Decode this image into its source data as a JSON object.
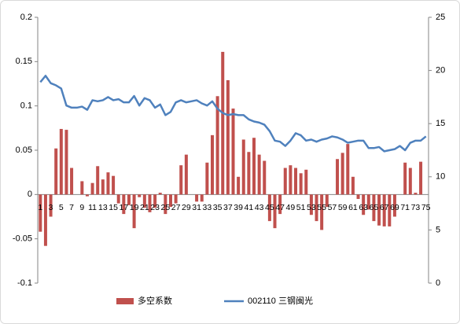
{
  "chart_data": {
    "type": "bar_line",
    "categories": [
      "1",
      null,
      "3",
      null,
      "5",
      null,
      "7",
      null,
      "9",
      null,
      "11",
      null,
      "13",
      null,
      "15",
      null,
      "17",
      null,
      "19",
      null,
      "21",
      null,
      "23",
      null,
      "25",
      null,
      "27",
      null,
      "29",
      null,
      "31",
      null,
      "33",
      null,
      "35",
      null,
      "37",
      null,
      "39",
      null,
      "41",
      null,
      "43",
      null,
      "45",
      null,
      "47",
      null,
      "49",
      null,
      "51",
      null,
      "53",
      null,
      "55",
      null,
      "57",
      null,
      "59",
      null,
      "61",
      null,
      "63",
      null,
      "65",
      null,
      "67",
      null,
      "69",
      null,
      "71",
      null,
      "73",
      null,
      "75"
    ],
    "series": [
      {
        "name": "多空系数",
        "type": "bar",
        "color": "#c0504d",
        "axis": "y",
        "values": [
          -0.042,
          -0.058,
          -0.025,
          0.052,
          0.074,
          0.073,
          0.03,
          0,
          0.015,
          -0.002,
          0.013,
          0.032,
          0.017,
          0.025,
          0.021,
          -0.01,
          -0.022,
          -0.012,
          -0.038,
          -0.003,
          -0.015,
          -0.02,
          -0.015,
          0.002,
          -0.022,
          -0.014,
          -0.01,
          0.033,
          0.045,
          0,
          -0.008,
          -0.008,
          0.036,
          0.067,
          0.111,
          0.161,
          0.129,
          0.097,
          0.02,
          0.062,
          0.048,
          0.064,
          0.045,
          0.038,
          -0.03,
          -0.038,
          -0.022,
          0.03,
          0.033,
          0.03,
          0.024,
          0.028,
          -0.023,
          -0.03,
          -0.04,
          -0.014,
          0,
          0.04,
          0.047,
          0.057,
          0.02,
          -0.005,
          -0.023,
          -0.017,
          -0.03,
          -0.035,
          -0.036,
          -0.036,
          -0.025,
          0,
          0.036,
          0.03,
          0.002,
          0.037,
          0
        ]
      },
      {
        "name": "002110 三钢闽光",
        "type": "line",
        "color": "#4f81bd",
        "axis": "y2",
        "values": [
          18.9,
          19.5,
          18.8,
          18.6,
          18.3,
          16.7,
          16.5,
          16.5,
          16.6,
          16.3,
          17.2,
          17.1,
          17.2,
          17.5,
          17.2,
          17.3,
          17.0,
          17.0,
          17.6,
          16.7,
          17.4,
          17.2,
          16.5,
          16.8,
          15.8,
          16.1,
          17.0,
          17.2,
          17.0,
          17.1,
          17.2,
          16.9,
          16.7,
          17.1,
          16.4,
          16.0,
          15.8,
          15.9,
          15.8,
          15.8,
          15.4,
          15.2,
          15.1,
          14.9,
          14.3,
          13.4,
          13.3,
          12.9,
          13.4,
          14.1,
          13.9,
          13.4,
          13.5,
          13.3,
          13.5,
          13.6,
          13.8,
          13.7,
          13.5,
          13.2,
          13.3,
          13.4,
          13.4,
          12.7,
          12.7,
          12.8,
          12.4,
          12.5,
          12.6,
          12.9,
          12.5,
          13.2,
          13.4,
          13.4,
          13.8
        ]
      }
    ],
    "ylim": [
      -0.1,
      0.2
    ],
    "yticks": [
      -0.1,
      -0.05,
      0,
      0.05,
      0.1,
      0.15,
      0.2
    ],
    "y2lim": [
      0,
      25
    ],
    "y2ticks": [
      0,
      5,
      10,
      15,
      20,
      25
    ],
    "legend": "bottom"
  }
}
